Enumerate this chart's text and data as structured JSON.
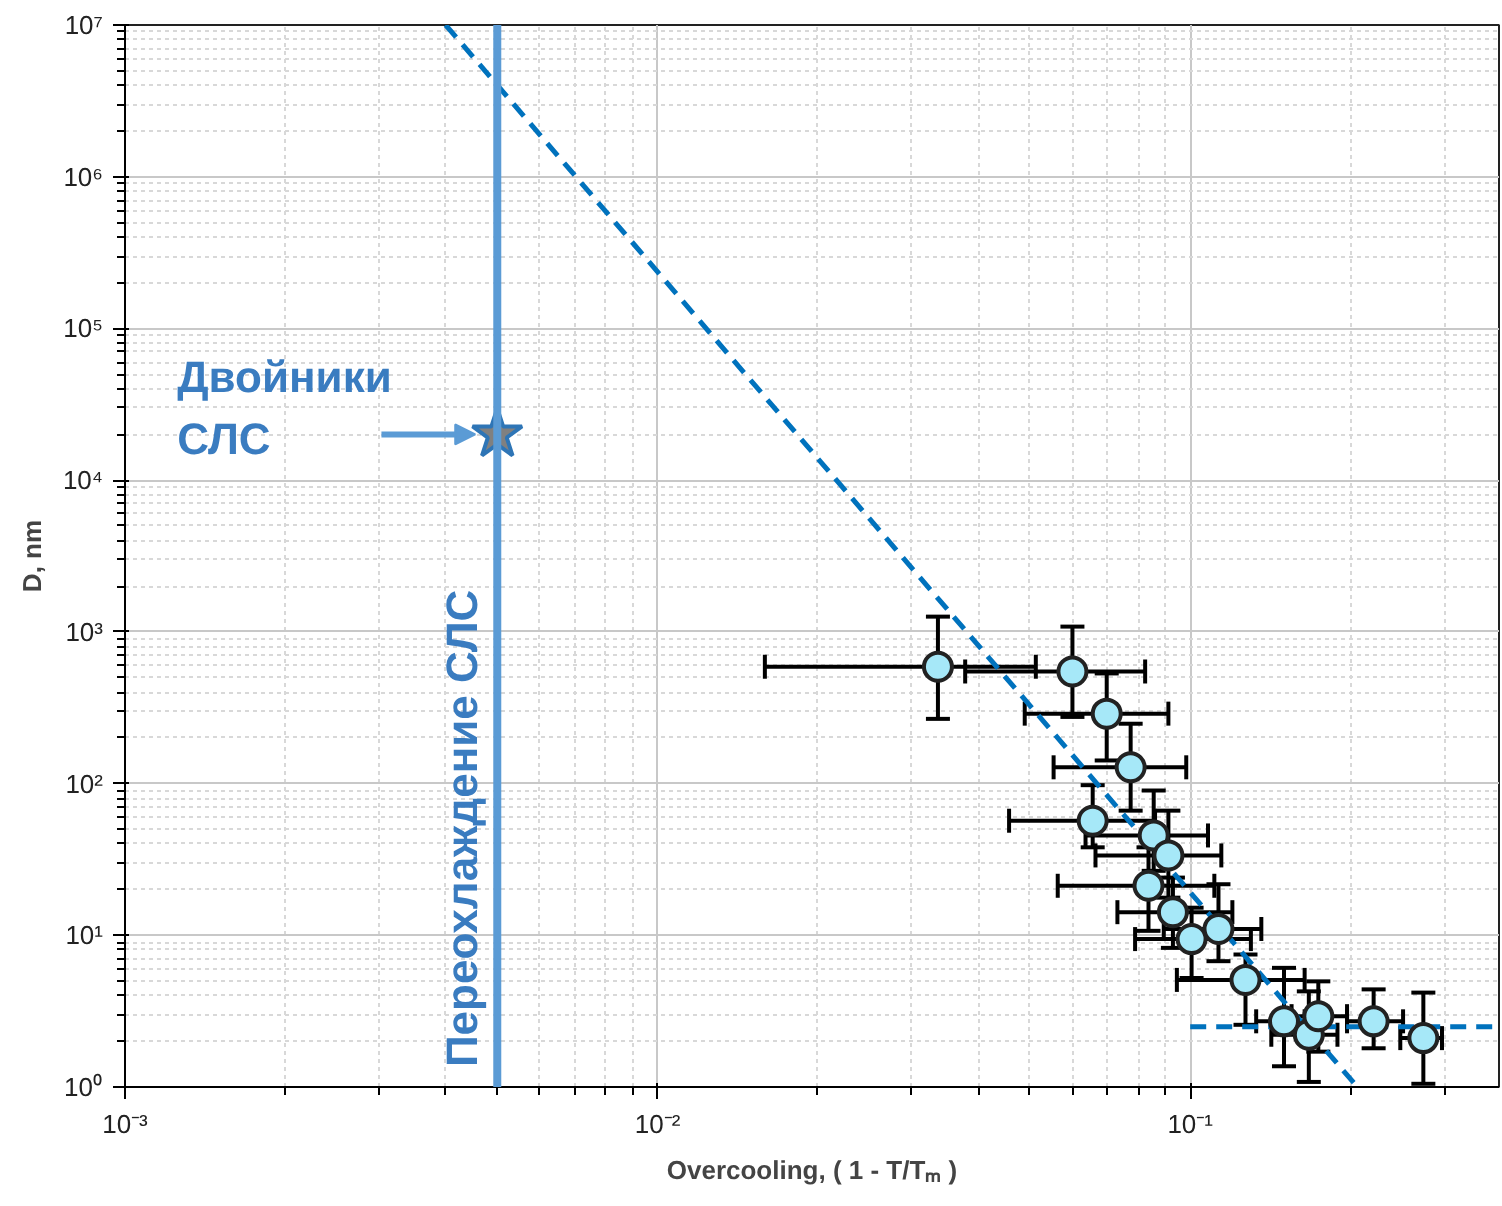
{
  "chart_data": {
    "type": "scatter",
    "xlabel": "Overcooling, ( 1 - T/Tₘ )",
    "ylabel": "D, nm",
    "log": "xy",
    "grid": true,
    "xlim": [
      0.001,
      0.38
    ],
    "ylim": [
      1,
      10000000
    ],
    "xticks": [
      {
        "value": 0.001,
        "label": "10⁻³"
      },
      {
        "value": 0.01,
        "label": "10⁻²"
      },
      {
        "value": 0.1,
        "label": "10⁻¹"
      }
    ],
    "yticks": [
      {
        "value": 1,
        "label": "10⁰"
      },
      {
        "value": 10,
        "label": "10¹"
      },
      {
        "value": 100,
        "label": "10²"
      },
      {
        "value": 1000,
        "label": "10³"
      },
      {
        "value": 10000,
        "label": "10⁴"
      },
      {
        "value": 100000,
        "label": "10⁵"
      },
      {
        "value": 1000000,
        "label": "10⁶"
      },
      {
        "value": 10000000,
        "label": "10⁷"
      }
    ],
    "series": [
      {
        "type": "line",
        "color": "#0072bd",
        "line_style": "dashed",
        "x": [
          0.004,
          0.206
        ],
        "values": [
          10000000,
          1
        ]
      },
      {
        "type": "line",
        "color": "#0072bd",
        "line_style": "dashed",
        "x": [
          0.1,
          0.38
        ],
        "values": [
          2.5,
          2.5
        ]
      },
      {
        "marker": "circle",
        "color": "#a6e8f8",
        "x": [
          0.0336,
          0.0601,
          0.0697,
          0.0773,
          0.0656,
          0.0854,
          0.091,
          0.0835,
          0.0928,
          0.1006,
          0.113,
          0.127,
          0.15,
          0.167,
          0.174,
          0.221,
          0.274
        ],
        "values": [
          589,
          548,
          289,
          128,
          56.9,
          45.5,
          33.6,
          21.2,
          14.2,
          9.44,
          11,
          5.08,
          2.71,
          2.21,
          2.93,
          2.71,
          2.1
        ],
        "xerrors": [
          [
            0.0159,
            0.0513
          ],
          [
            0.0378,
            0.0823
          ],
          [
            0.0489,
            0.091
          ],
          [
            0.0554,
            0.0983
          ],
          [
            0.0457,
            0.0859
          ],
          [
            0.0636,
            0.108
          ],
          [
            0.0664,
            0.1144
          ],
          [
            0.0564,
            0.111
          ],
          [
            0.073,
            0.12
          ],
          [
            0.0788,
            0.13
          ],
          [
            0.0892,
            0.136
          ],
          [
            0.0944,
            0.164
          ],
          [
            0.133,
            0.164
          ],
          [
            0.142,
            0.189
          ],
          [
            0.155,
            0.197
          ],
          [
            0.197,
            0.251
          ],
          [
            0.248,
            0.297
          ]
        ],
        "errors": [
          [
            267,
            1260
          ],
          [
            275,
            1083
          ],
          [
            142,
            532
          ],
          [
            66.3,
            248
          ],
          [
            38,
            97.6
          ],
          [
            26.6,
            90
          ],
          [
            17.7,
            66.3
          ],
          [
            10.7,
            38
          ],
          [
            8.26,
            24
          ],
          [
            5.23,
            15.2
          ],
          [
            6.75,
            21.7
          ],
          [
            2.57,
            7.47
          ],
          [
            1.37,
            6.1
          ],
          [
            1.08,
            4.27
          ],
          [
            1.71,
            4.97
          ],
          [
            1.8,
            4.4
          ],
          [
            1.05,
            4.19
          ]
        ]
      },
      {
        "type": "scatter",
        "marker": "star",
        "color": "#808080",
        "x": [
          0.005
        ],
        "values": [
          20000
        ]
      }
    ],
    "ref_lines": [
      {
        "axis": "x",
        "value": 0.005,
        "label": "Переохлаждение СЛС",
        "color": "#5b9bd5",
        "line_style": "solid"
      }
    ],
    "annotations": [
      {
        "text": "Двойники\nСЛС",
        "x": 0.005,
        "y": 20000
      }
    ]
  }
}
